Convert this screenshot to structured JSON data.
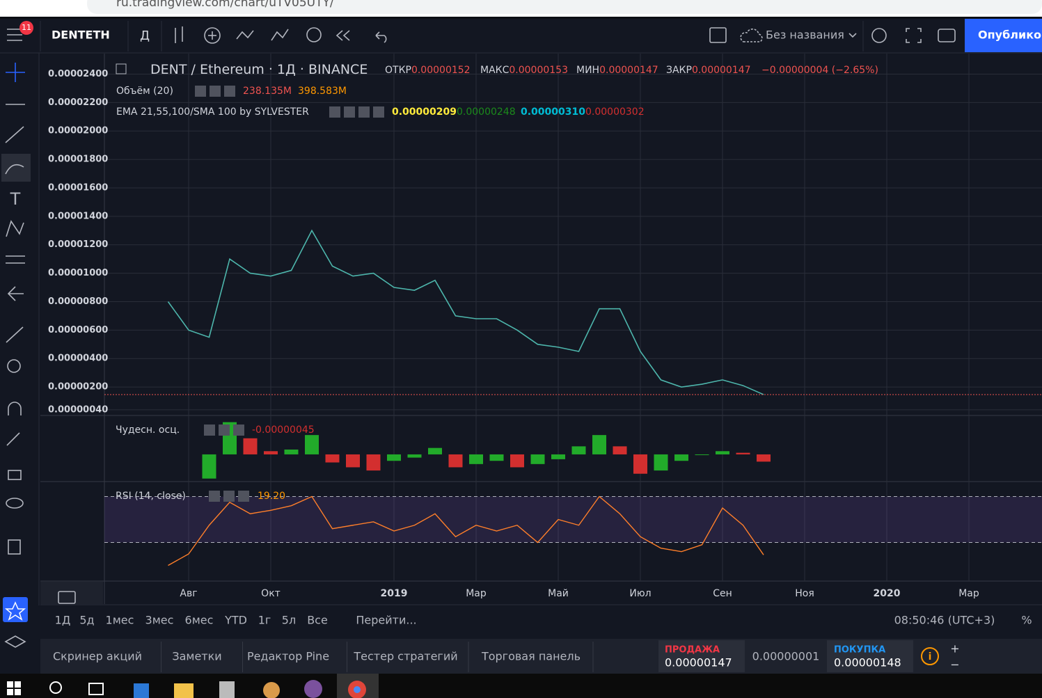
{
  "browser": {
    "url": "ru.tradingview.com/chart/uTV05UTY/"
  },
  "toolbar": {
    "badge": "11",
    "symbol": "DENTETH",
    "interval": "Д",
    "layout_name": "Без названия",
    "publish": "Опубликов"
  },
  "legend": {
    "base": "DENT",
    "sep": "/",
    "quote": "Ethereum",
    "interval": "1Д",
    "exchange": "BINANCE",
    "open_label": "ОТКР",
    "open": "0.00000152",
    "high_label": "МАКС",
    "high": "0.00000153",
    "low_label": "МИН",
    "low": "0.00000147",
    "close_label": "ЗАКР",
    "close": "0.00000147",
    "change": "−0.00000004 (−2.65%)",
    "volume_name": "Объём (20)",
    "volume": "238.135M",
    "volume_ma": "398.583M",
    "ema_name": "EMA 21,55,100/SMA 100 by SYLVESTER",
    "ema_values": [
      "0.00000209",
      "0.00000248",
      "0.00000310",
      "0.00000302"
    ],
    "ao_name": "Чудесн. осц.",
    "ao_value": "-0.00000045",
    "rsi_name": "RSI (14, close)",
    "rsi_value": "19.20"
  },
  "chart_data": [
    {
      "type": "line",
      "color": "#4db6ac",
      "last_line_color": "#ef5350",
      "categories": [
        null,
        null,
        "Авг",
        null,
        null,
        null,
        "Окт",
        null,
        null,
        null,
        null,
        null,
        "2019",
        null,
        null,
        null,
        "Мар",
        null,
        null,
        null,
        "Май",
        null,
        null,
        null,
        "Июл",
        null,
        null,
        null,
        "Сен",
        null,
        null,
        null,
        "Ноя",
        null,
        null,
        null,
        "2020",
        null,
        null,
        null,
        "Мар",
        null,
        null,
        null
      ],
      "values": [
        null,
        8e-06,
        6e-06,
        5.5e-06,
        1.1e-05,
        1e-05,
        9.8e-06,
        1.02e-05,
        1.3e-05,
        1.05e-05,
        9.8e-06,
        1e-05,
        9e-06,
        8.8e-06,
        9.5e-06,
        7e-06,
        6.8e-06,
        6.8e-06,
        6e-06,
        5e-06,
        4.8e-06,
        4.5e-06,
        7.5e-06,
        7.5e-06,
        4.5e-06,
        2.5e-06,
        2e-06,
        2.2e-06,
        2.5e-06,
        2.1e-06,
        1.47e-06,
        null,
        null,
        null,
        null,
        null,
        null,
        null,
        null,
        null,
        null,
        null,
        null,
        null
      ],
      "ylim": [
        0,
        2.5e-05
      ],
      "yticks": [
        {
          "value": 2.4e-05,
          "label": "0.00002400"
        },
        {
          "value": 2.2e-05,
          "label": "0.00002200"
        },
        {
          "value": 2e-05,
          "label": "0.00002000"
        },
        {
          "value": 1.8e-05,
          "label": "0.00001800"
        },
        {
          "value": 1.6e-05,
          "label": "0.00001600"
        },
        {
          "value": 1.4e-05,
          "label": "0.00001400"
        },
        {
          "value": 1.2e-05,
          "label": "0.00001200"
        },
        {
          "value": 1e-05,
          "label": "0.00001000"
        },
        {
          "value": 8e-06,
          "label": "0.00000800"
        },
        {
          "value": 6e-06,
          "label": "0.00000600"
        },
        {
          "value": 4e-06,
          "label": "0.00000400"
        },
        {
          "value": 2e-06,
          "label": "0.00000200"
        },
        {
          "value": 4e-07,
          "label": "0.00000040"
        }
      ],
      "grid": true
    },
    {
      "type": "bar",
      "up_color": "#22ab2a",
      "down_color": "#d32f2f",
      "values": [
        null,
        null,
        null,
        -1.5e-06,
        2e-06,
        1e-06,
        2e-07,
        3e-07,
        1.2e-06,
        -5e-07,
        -8e-07,
        -1e-06,
        -4e-07,
        -2e-07,
        4e-07,
        -8e-07,
        -6e-07,
        -4e-07,
        -8e-07,
        -6e-07,
        -3e-07,
        5e-07,
        1.2e-06,
        5e-07,
        -1.2e-06,
        -1e-06,
        -4e-07,
        0,
        2e-07,
        1e-07,
        -4.5e-07,
        null,
        null,
        null,
        null,
        null,
        null,
        null,
        null,
        null,
        null,
        null,
        null,
        null
      ],
      "ylim": [
        -1.6e-06,
        2.2e-06
      ]
    },
    {
      "type": "line",
      "color": "#ff7f2a",
      "values": [
        null,
        10,
        20,
        45,
        65,
        55,
        58,
        62,
        70,
        42,
        45,
        48,
        40,
        45,
        55,
        35,
        45,
        40,
        45,
        30,
        50,
        45,
        70,
        55,
        35,
        25,
        22,
        28,
        60,
        45,
        19.2,
        null,
        null,
        null,
        null,
        null,
        null,
        null,
        null,
        null,
        null,
        null,
        null,
        null
      ],
      "ylim": [
        0,
        80
      ],
      "levels": [
        30,
        70
      ]
    }
  ],
  "bottom_bar": {
    "ranges": [
      "1Д",
      "5д",
      "1мес",
      "3мес",
      "6мес",
      "YTD",
      "1г",
      "5л",
      "Все"
    ],
    "goto": "Перейти...",
    "clock": "08:50:46 (UTC+3)",
    "percent": "%"
  },
  "panel": {
    "tabs": [
      "Скринер акций",
      "Заметки",
      "Редактор Pine",
      "Тестер стратегий",
      "Торговая панель"
    ],
    "sell_label": "ПРОДАЖА",
    "sell": "0.00000147",
    "spread": "0.00000001",
    "buy_label": "ПОКУПКА",
    "buy": "0.00000148"
  }
}
